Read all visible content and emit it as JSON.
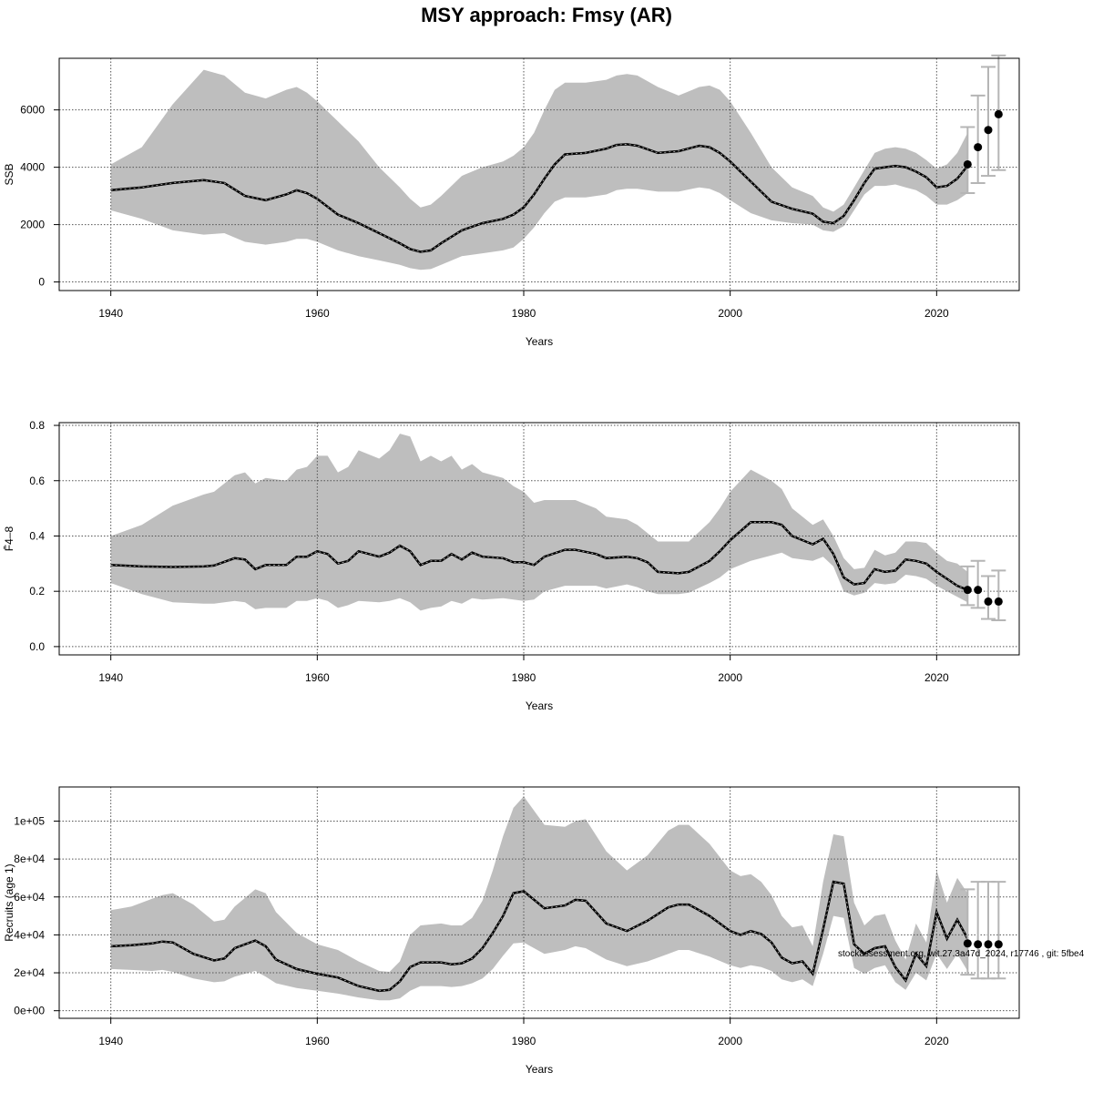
{
  "chart_data": [
    {
      "type": "line",
      "title": "MSY approach: Fmsy (AR)",
      "ylabel": "SSB",
      "xlabel": "Years",
      "xlim": [
        1935,
        2028
      ],
      "ylim": [
        -300,
        7800
      ],
      "grid": true,
      "x_ticks": [
        "1940",
        "1960",
        "1980",
        "2000",
        "2020"
      ],
      "y_ticks": [
        "0",
        "2000",
        "4000",
        "6000"
      ],
      "y_tick_values": [
        0,
        2000,
        4000,
        6000
      ],
      "estimate": {
        "x": [
          1940,
          1943,
          1946,
          1949,
          1951,
          1953,
          1955,
          1957,
          1958,
          1959,
          1960,
          1962,
          1964,
          1966,
          1968,
          1969,
          1970,
          1971,
          1972,
          1974,
          1976,
          1978,
          1979,
          1980,
          1981,
          1982,
          1983,
          1984,
          1986,
          1988,
          1989,
          1990,
          1991,
          1993,
          1995,
          1997,
          1998,
          1999,
          2000,
          2002,
          2004,
          2006,
          2008,
          2009,
          2010,
          2011,
          2012,
          2013,
          2014,
          2015,
          2016,
          2017,
          2018,
          2019,
          2020,
          2021,
          2022,
          2023
        ],
        "y": [
          3200,
          3300,
          3450,
          3550,
          3450,
          3000,
          2850,
          3050,
          3200,
          3100,
          2900,
          2350,
          2050,
          1700,
          1350,
          1150,
          1050,
          1100,
          1350,
          1800,
          2050,
          2200,
          2350,
          2600,
          3050,
          3600,
          4100,
          4450,
          4500,
          4650,
          4780,
          4800,
          4750,
          4500,
          4560,
          4750,
          4700,
          4500,
          4200,
          3500,
          2800,
          2550,
          2380,
          2100,
          2050,
          2300,
          2850,
          3450,
          3950,
          4000,
          4050,
          4000,
          3850,
          3650,
          3300,
          3350,
          3600,
          4050
        ],
        "low": [
          2500,
          2200,
          1800,
          1650,
          1700,
          1400,
          1300,
          1400,
          1500,
          1500,
          1400,
          1100,
          900,
          750,
          600,
          480,
          420,
          450,
          600,
          900,
          1000,
          1100,
          1200,
          1500,
          1900,
          2400,
          2800,
          2950,
          2950,
          3050,
          3200,
          3250,
          3250,
          3150,
          3150,
          3300,
          3250,
          3100,
          2850,
          2400,
          2150,
          2050,
          2000,
          1800,
          1750,
          1950,
          2500,
          3050,
          3350,
          3350,
          3400,
          3300,
          3200,
          3000,
          2700,
          2700,
          2850,
          3100
        ],
        "high": [
          4100,
          4700,
          6200,
          7400,
          7200,
          6600,
          6400,
          6700,
          6800,
          6600,
          6300,
          5600,
          4900,
          4000,
          3300,
          2900,
          2600,
          2700,
          3000,
          3700,
          4000,
          4200,
          4400,
          4700,
          5200,
          6000,
          6700,
          6950,
          6950,
          7050,
          7200,
          7250,
          7200,
          6800,
          6500,
          6800,
          6850,
          6700,
          6300,
          5200,
          4000,
          3300,
          3000,
          2600,
          2450,
          2700,
          3300,
          3900,
          4500,
          4650,
          4700,
          4650,
          4500,
          4250,
          3950,
          4100,
          4500,
          5200
        ]
      },
      "forecast": {
        "x": [
          2023,
          2024,
          2025,
          2026
        ],
        "y": [
          4100,
          4700,
          5300,
          5850
        ],
        "low": [
          3100,
          3450,
          3700,
          3900
        ],
        "high": [
          5400,
          6500,
          7500,
          7900
        ]
      }
    },
    {
      "type": "line",
      "ylabel": "F̄4–8",
      "xlabel": "Years",
      "xlim": [
        1935,
        2028
      ],
      "ylim": [
        -0.03,
        0.81
      ],
      "grid": true,
      "x_ticks": [
        "1940",
        "1960",
        "1980",
        "2000",
        "2020"
      ],
      "y_ticks": [
        "0.0",
        "0.2",
        "0.4",
        "0.6",
        "0.8"
      ],
      "y_tick_values": [
        0,
        0.2,
        0.4,
        0.6,
        0.8
      ],
      "estimate": {
        "x": [
          1940,
          1943,
          1946,
          1949,
          1950,
          1952,
          1953,
          1954,
          1955,
          1957,
          1958,
          1959,
          1960,
          1961,
          1962,
          1963,
          1964,
          1966,
          1967,
          1968,
          1969,
          1970,
          1971,
          1972,
          1973,
          1974,
          1975,
          1976,
          1978,
          1979,
          1980,
          1981,
          1982,
          1984,
          1985,
          1987,
          1988,
          1990,
          1991,
          1992,
          1993,
          1995,
          1996,
          1998,
          1999,
          2000,
          2002,
          2004,
          2005,
          2006,
          2008,
          2009,
          2010,
          2011,
          2012,
          2013,
          2014,
          2015,
          2016,
          2017,
          2018,
          2019,
          2020,
          2021,
          2022,
          2023
        ],
        "low": [
          0.23,
          0.19,
          0.16,
          0.155,
          0.155,
          0.165,
          0.16,
          0.135,
          0.14,
          0.14,
          0.165,
          0.165,
          0.175,
          0.165,
          0.14,
          0.15,
          0.165,
          0.16,
          0.165,
          0.175,
          0.16,
          0.13,
          0.14,
          0.145,
          0.165,
          0.155,
          0.175,
          0.17,
          0.175,
          0.17,
          0.165,
          0.17,
          0.2,
          0.22,
          0.22,
          0.22,
          0.21,
          0.225,
          0.215,
          0.2,
          0.19,
          0.19,
          0.195,
          0.23,
          0.25,
          0.28,
          0.31,
          0.33,
          0.34,
          0.32,
          0.31,
          0.325,
          0.29,
          0.2,
          0.185,
          0.195,
          0.23,
          0.225,
          0.23,
          0.26,
          0.255,
          0.245,
          0.22,
          0.2,
          0.18,
          0.16
        ],
        "high": [
          0.4,
          0.44,
          0.51,
          0.55,
          0.56,
          0.62,
          0.63,
          0.59,
          0.61,
          0.6,
          0.64,
          0.65,
          0.69,
          0.69,
          0.63,
          0.65,
          0.71,
          0.68,
          0.71,
          0.77,
          0.76,
          0.67,
          0.69,
          0.67,
          0.69,
          0.64,
          0.66,
          0.63,
          0.61,
          0.58,
          0.56,
          0.52,
          0.53,
          0.53,
          0.53,
          0.5,
          0.47,
          0.46,
          0.44,
          0.41,
          0.38,
          0.38,
          0.38,
          0.45,
          0.5,
          0.56,
          0.64,
          0.6,
          0.57,
          0.5,
          0.44,
          0.46,
          0.4,
          0.32,
          0.28,
          0.285,
          0.35,
          0.33,
          0.34,
          0.38,
          0.38,
          0.375,
          0.34,
          0.31,
          0.3,
          0.27
        ],
        "y": [
          0.295,
          0.29,
          0.288,
          0.29,
          0.293,
          0.32,
          0.315,
          0.28,
          0.295,
          0.295,
          0.325,
          0.325,
          0.345,
          0.335,
          0.3,
          0.31,
          0.345,
          0.325,
          0.34,
          0.365,
          0.345,
          0.295,
          0.31,
          0.31,
          0.335,
          0.315,
          0.34,
          0.325,
          0.32,
          0.305,
          0.305,
          0.295,
          0.325,
          0.35,
          0.35,
          0.335,
          0.32,
          0.325,
          0.32,
          0.305,
          0.27,
          0.265,
          0.27,
          0.31,
          0.345,
          0.385,
          0.45,
          0.45,
          0.44,
          0.4,
          0.37,
          0.39,
          0.335,
          0.25,
          0.225,
          0.23,
          0.28,
          0.27,
          0.275,
          0.315,
          0.31,
          0.3,
          0.27,
          0.245,
          0.22,
          0.205
        ]
      },
      "forecast": {
        "x": [
          2023,
          2024,
          2025,
          2026
        ],
        "y": [
          0.205,
          0.205,
          0.163,
          0.163
        ],
        "low": [
          0.15,
          0.14,
          0.1,
          0.095
        ],
        "high": [
          0.29,
          0.31,
          0.255,
          0.275
        ]
      }
    },
    {
      "type": "line",
      "ylabel": "Recruits (age 1)",
      "xlabel": "Years",
      "xlim": [
        1935,
        2028
      ],
      "ylim": [
        -4000,
        118000
      ],
      "grid": true,
      "x_ticks": [
        "1940",
        "1960",
        "1980",
        "2000",
        "2020"
      ],
      "y_ticks": [
        "0e+00",
        "2e+04",
        "4e+04",
        "6e+04",
        "8e+04",
        "1e+05"
      ],
      "y_tick_values": [
        0,
        20000,
        40000,
        60000,
        80000,
        100000
      ],
      "estimate": {
        "x": [
          1940,
          1942,
          1944,
          1945,
          1946,
          1948,
          1950,
          1951,
          1952,
          1954,
          1955,
          1956,
          1958,
          1960,
          1962,
          1964,
          1966,
          1967,
          1968,
          1969,
          1970,
          1972,
          1973,
          1974,
          1975,
          1976,
          1977,
          1978,
          1979,
          1980,
          1982,
          1984,
          1985,
          1986,
          1988,
          1990,
          1992,
          1994,
          1995,
          1996,
          1998,
          2000,
          2001,
          2002,
          2003,
          2004,
          2005,
          2006,
          2007,
          2008,
          2009,
          2010,
          2011,
          2012,
          2013,
          2014,
          2015,
          2016,
          2017,
          2018,
          2019,
          2020,
          2021,
          2022,
          2023
        ],
        "y": [
          34000,
          34500,
          35500,
          36500,
          36000,
          30000,
          26500,
          27500,
          33000,
          37000,
          34000,
          27000,
          22000,
          19500,
          17500,
          13000,
          10500,
          11000,
          15500,
          23000,
          25500,
          25500,
          24500,
          25000,
          27500,
          33000,
          41000,
          50000,
          62000,
          63000,
          54000,
          55500,
          58500,
          58000,
          46000,
          42000,
          47500,
          54500,
          56000,
          56000,
          50000,
          42000,
          40000,
          42000,
          40500,
          36000,
          28000,
          25000,
          26000,
          19500,
          43000,
          68000,
          67000,
          35000,
          30000,
          33000,
          34000,
          23000,
          16000,
          30000,
          23500,
          52000,
          38000,
          48000,
          38000
        ],
        "low": [
          22000,
          21500,
          21000,
          21500,
          20500,
          17000,
          15000,
          15500,
          18000,
          21000,
          18000,
          14500,
          12000,
          10500,
          9000,
          7000,
          5500,
          5500,
          6500,
          10500,
          13000,
          13000,
          12500,
          13000,
          14500,
          17000,
          22000,
          29000,
          35500,
          36000,
          30000,
          32000,
          34000,
          33000,
          27000,
          23500,
          26000,
          30000,
          32000,
          32000,
          28500,
          24000,
          22500,
          24000,
          23000,
          21000,
          16500,
          15000,
          16500,
          13000,
          30000,
          50000,
          49000,
          22500,
          19500,
          22500,
          24000,
          15000,
          11000,
          20000,
          16000,
          30000,
          22000,
          30000,
          21000
        ],
        "high": [
          53000,
          55000,
          59000,
          61000,
          62000,
          56000,
          47000,
          48000,
          55000,
          64000,
          62000,
          52000,
          41000,
          35000,
          32000,
          26000,
          21000,
          20500,
          26000,
          40000,
          45000,
          46000,
          45000,
          45000,
          49000,
          58000,
          74000,
          92000,
          107000,
          113000,
          98000,
          97000,
          100000,
          101000,
          84000,
          74000,
          82000,
          95000,
          98000,
          98000,
          88000,
          74000,
          71000,
          72000,
          68000,
          61000,
          50000,
          44000,
          45000,
          34000,
          68000,
          93000,
          92000,
          57000,
          45000,
          50000,
          51000,
          37000,
          27000,
          46000,
          36000,
          74000,
          57000,
          70000,
          62000
        ]
      },
      "forecast": {
        "x": [
          2023,
          2024,
          2025,
          2026
        ],
        "y": [
          35500,
          35000,
          35000,
          35000
        ],
        "low": [
          19000,
          17000,
          17000,
          17000
        ],
        "high": [
          64000,
          68000,
          68000,
          68000
        ]
      }
    }
  ],
  "footnote": "stockassessment.org, wit.27.3a47d_2024, r17746 , git: 5fbe4"
}
